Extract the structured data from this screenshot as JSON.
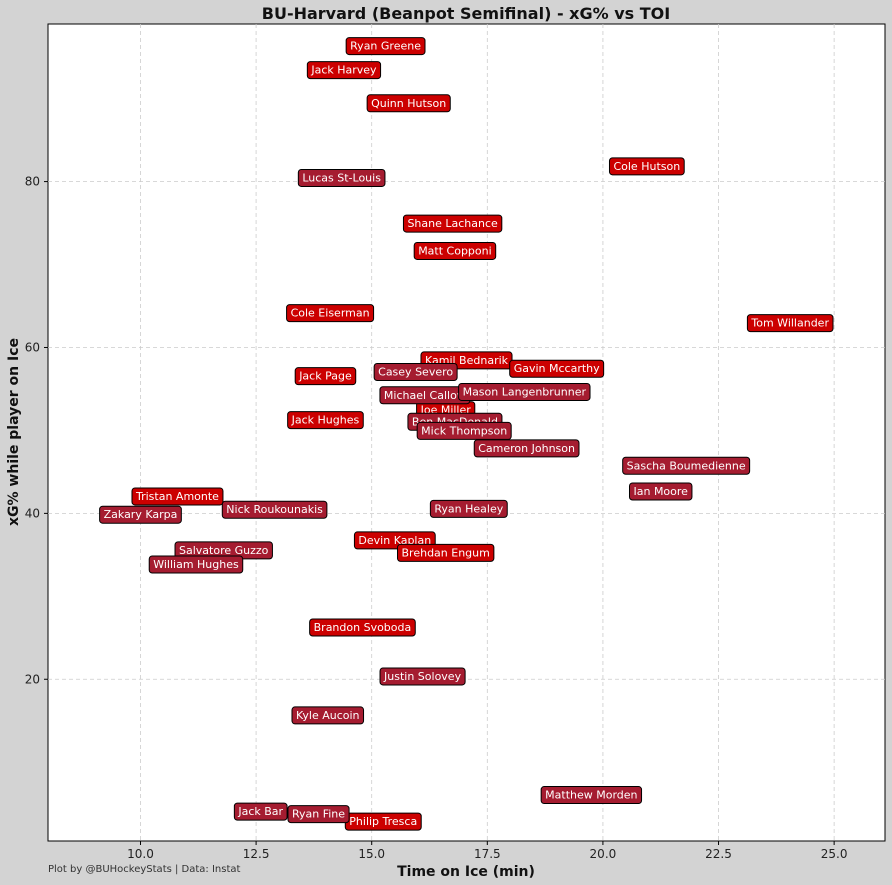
{
  "footer": "Plot by @BUHockeyStats | Data: Instat",
  "colors": {
    "background": "#d3d3d3",
    "plot_background": "#ffffff",
    "grid": "#cccccc",
    "bu_red": "#cc0000",
    "harvard_crimson": "#a51c30",
    "label_border": "#000000"
  },
  "chart_data": {
    "type": "scatter",
    "title": "BU-Harvard (Beanpot Semifinal) - xG% vs TOI",
    "xlabel": "Time on Ice (min)",
    "ylabel": "xG% while player on Ice",
    "xlim": [
      8.0,
      26.1
    ],
    "ylim": [
      0.5,
      99.0
    ],
    "xticks": [
      10.0,
      12.5,
      15.0,
      17.5,
      20.0,
      22.5,
      25.0
    ],
    "xtick_labels": [
      "10.0",
      "12.5",
      "15.0",
      "17.5",
      "20.0",
      "22.5",
      "25.0"
    ],
    "yticks": [
      20,
      40,
      60,
      80
    ],
    "ytick_labels": [
      "20",
      "40",
      "60",
      "80"
    ],
    "grid": true,
    "legend": "none",
    "series": [
      {
        "color": "#cc0000",
        "points": [
          {
            "label": "Ryan Greene",
            "x": 15.3,
            "y": 96.4
          },
          {
            "label": "Jack Harvey",
            "x": 14.4,
            "y": 93.5
          },
          {
            "label": "Quinn Hutson",
            "x": 15.8,
            "y": 89.5
          },
          {
            "label": "Cole Hutson",
            "x": 20.95,
            "y": 81.9
          },
          {
            "label": "Shane Lachance",
            "x": 16.75,
            "y": 75.0
          },
          {
            "label": "Matt Copponi",
            "x": 16.8,
            "y": 71.7
          },
          {
            "label": "Tom Willander",
            "x": 24.05,
            "y": 63.0
          },
          {
            "label": "Cole Eiserman",
            "x": 14.1,
            "y": 64.2
          },
          {
            "label": "Kamil Bednarik",
            "x": 17.05,
            "y": 58.5
          },
          {
            "label": "Gavin Mccarthy",
            "x": 19.0,
            "y": 57.5
          },
          {
            "label": "Jack Page",
            "x": 14.0,
            "y": 56.6
          },
          {
            "label": "Jack Hughes",
            "x": 14.0,
            "y": 51.3
          },
          {
            "label": "Joe Miller",
            "x": 16.6,
            "y": 52.5
          },
          {
            "label": "Tristan Amonte",
            "x": 10.8,
            "y": 42.1
          },
          {
            "label": "Devin Kaplan",
            "x": 15.5,
            "y": 36.8
          },
          {
            "label": "Brehdan Engum",
            "x": 16.6,
            "y": 35.3
          },
          {
            "label": "Brandon Svoboda",
            "x": 14.8,
            "y": 26.3
          },
          {
            "label": "Philip Tresca",
            "x": 15.25,
            "y": 2.9
          }
        ]
      },
      {
        "color": "#a51c30",
        "points": [
          {
            "label": "Lucas St-Louis",
            "x": 14.35,
            "y": 80.5
          },
          {
            "label": "Casey Severo",
            "x": 15.95,
            "y": 57.1
          },
          {
            "label": "Michael Callow",
            "x": 16.15,
            "y": 54.3
          },
          {
            "label": "Mason Langenbrunner",
            "x": 18.3,
            "y": 54.7
          },
          {
            "label": "Ben MacDonald",
            "x": 16.8,
            "y": 51.1
          },
          {
            "label": "Mick Thompson",
            "x": 17.0,
            "y": 50.0
          },
          {
            "label": "Cameron Johnson",
            "x": 18.35,
            "y": 47.9
          },
          {
            "label": "Sascha Boumedienne",
            "x": 21.8,
            "y": 45.8
          },
          {
            "label": "Ian Moore",
            "x": 21.25,
            "y": 42.7
          },
          {
            "label": "Ryan Healey",
            "x": 17.1,
            "y": 40.6
          },
          {
            "label": "Nick Roukounakis",
            "x": 12.9,
            "y": 40.5
          },
          {
            "label": "Zakary Karpa",
            "x": 10.0,
            "y": 39.9
          },
          {
            "label": "Salvatore Guzzo",
            "x": 11.8,
            "y": 35.6
          },
          {
            "label": "William Hughes",
            "x": 11.2,
            "y": 33.9
          },
          {
            "label": "Justin Solovey",
            "x": 16.1,
            "y": 20.4
          },
          {
            "label": "Kyle Aucoin",
            "x": 14.05,
            "y": 15.7
          },
          {
            "label": "Matthew Morden",
            "x": 19.75,
            "y": 6.1
          },
          {
            "label": "Jack Bar",
            "x": 12.6,
            "y": 4.1
          },
          {
            "label": "Ryan Fine",
            "x": 13.85,
            "y": 3.8
          }
        ]
      }
    ]
  }
}
